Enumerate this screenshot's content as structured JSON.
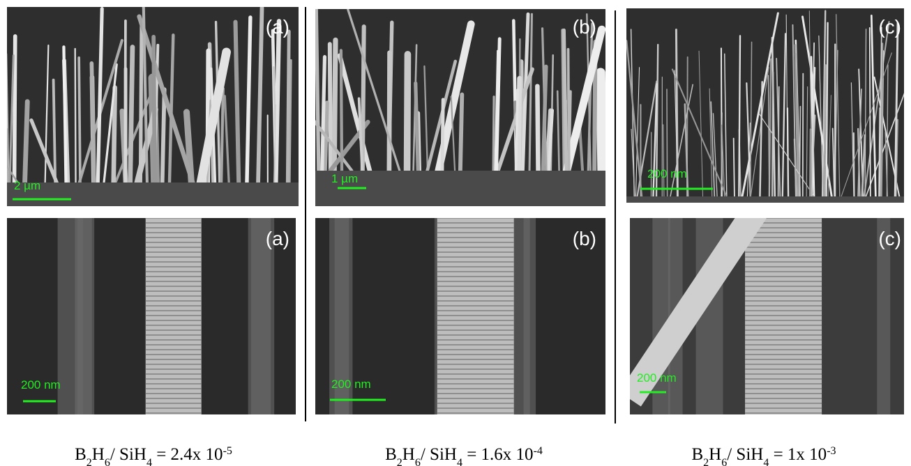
{
  "top_row": [
    {
      "label": "(a)",
      "scale_bar": "2 µm"
    },
    {
      "label": "(b)",
      "scale_bar": "1 µm"
    },
    {
      "label": "(c)",
      "scale_bar": "200 nm"
    }
  ],
  "bottom_row": [
    {
      "label": "(a)",
      "scale_bar": "200 nm"
    },
    {
      "label": "(b)",
      "scale_bar": "200 nm"
    },
    {
      "label": "(c)",
      "scale_bar": "200 nm"
    }
  ],
  "captions": [
    {
      "segments": [
        {
          "text": "B"
        },
        {
          "text": "2",
          "pos": "sub"
        },
        {
          "text": "H"
        },
        {
          "text": "6",
          "pos": "sub"
        },
        {
          "text": "/ SiH"
        },
        {
          "text": "4",
          "pos": "sub"
        },
        {
          "text": " = 2.4x 10"
        },
        {
          "text": "-5",
          "pos": "super"
        }
      ]
    },
    {
      "segments": [
        {
          "text": "B"
        },
        {
          "text": "2",
          "pos": "sub"
        },
        {
          "text": "H"
        },
        {
          "text": "6",
          "pos": "sub"
        },
        {
          "text": "/ SiH"
        },
        {
          "text": "4",
          "pos": "sub"
        },
        {
          "text": " = 1.6x 10"
        },
        {
          "text": "-4",
          "pos": "super"
        }
      ]
    },
    {
      "segments": [
        {
          "text": "B"
        },
        {
          "text": "2",
          "pos": "sub"
        },
        {
          "text": "H"
        },
        {
          "text": "6",
          "pos": "sub"
        },
        {
          "text": "/ SiH"
        },
        {
          "text": "4",
          "pos": "sub"
        },
        {
          "text": " = 1x 10"
        },
        {
          "text": "-3",
          "pos": "super"
        }
      ]
    }
  ]
}
